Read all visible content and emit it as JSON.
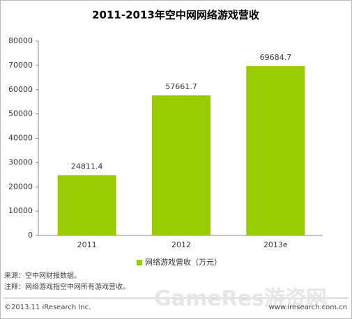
{
  "chart_data": {
    "type": "bar",
    "title": "2011-2013年空中网网络游戏营收",
    "categories": [
      "2011",
      "2012",
      "2013e"
    ],
    "series": [
      {
        "name": "网络游戏营收（万元）",
        "color": "#99cc00",
        "values": [
          24811.4,
          57661.7,
          69684.7
        ]
      }
    ],
    "ylim": [
      0,
      80000
    ],
    "yticks": [
      0,
      10000,
      20000,
      30000,
      40000,
      50000,
      60000,
      70000,
      80000
    ],
    "grid": false,
    "legend": "bottom"
  },
  "notes": [
    "来源：空中网财报数据。",
    "注释：网络游戏指空中网所有游戏营收。"
  ],
  "footer": {
    "copyright": "©2013.11 iResearch Inc.",
    "website": "www.iresearch.com.cn"
  },
  "watermark": "GameRes游资网"
}
